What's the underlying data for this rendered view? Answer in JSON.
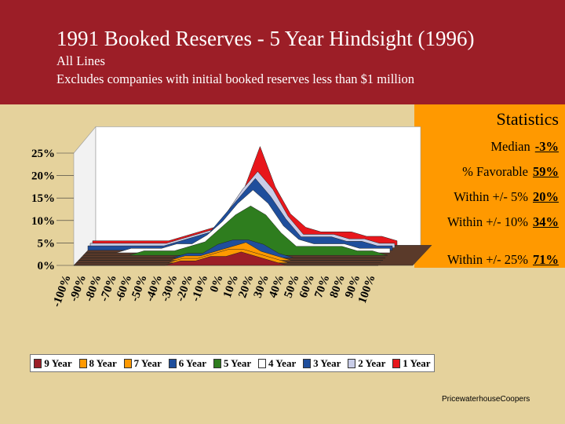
{
  "header": {
    "title": "1991 Booked Reserves - 5 Year Hindsight (1996)",
    "subtitle_1": "All Lines",
    "subtitle_2": "Excludes companies with initial booked reserves less than $1 million"
  },
  "statistics": {
    "title": "Statistics",
    "rows": [
      {
        "label": "Median",
        "value": "-3%"
      },
      {
        "label": "% Favorable",
        "value": "59%"
      },
      {
        "label": "Within +/- 5%",
        "value": "20%"
      },
      {
        "label": "Within +/- 10%",
        "value": "34%"
      },
      {
        "label": "Within +/- 25%",
        "value": "71%"
      }
    ]
  },
  "credit": "PricewaterhouseCoopers",
  "colors": {
    "header_bg": "#9c1e27",
    "page_bg": "#e5d29c",
    "stats_bg": "#ff9900"
  },
  "chart_data": {
    "type": "area",
    "title": "",
    "xlabel": "",
    "ylabel": "",
    "ylim": [
      0,
      0.25
    ],
    "y_ticks": [
      "0%",
      "5%",
      "10%",
      "15%",
      "20%",
      "25%"
    ],
    "categories": [
      "-100%",
      "-90%",
      "-80%",
      "-70%",
      "-60%",
      "-50%",
      "-40%",
      "-30%",
      "-20%",
      "-10%",
      "0%",
      "10%",
      "20%",
      "30%",
      "40%",
      "50%",
      "60%",
      "70%",
      "80%",
      "90%",
      "100%"
    ],
    "grid": false,
    "legend_position": "bottom",
    "series": [
      {
        "name": "9 Year",
        "color": "#9c1e27",
        "values": [
          0.0,
          0.0,
          0.0,
          0.0,
          0.0,
          0.0,
          0.0,
          0.01,
          0.01,
          0.02,
          0.02,
          0.03,
          0.02,
          0.01,
          0.0,
          0.0,
          0.0,
          0.0,
          0.0,
          0.0,
          0.0
        ]
      },
      {
        "name": "8 Year",
        "color": "#ff9900",
        "values": [
          0.0,
          0.0,
          0.0,
          0.0,
          0.0,
          0.0,
          0.0,
          0.01,
          0.01,
          0.02,
          0.03,
          0.03,
          0.02,
          0.01,
          0.0,
          0.0,
          0.0,
          0.0,
          0.0,
          0.0,
          0.0
        ]
      },
      {
        "name": "7 Year",
        "color": "#ff9900",
        "values": [
          0.0,
          0.0,
          0.0,
          0.0,
          0.0,
          0.0,
          0.0,
          0.01,
          0.01,
          0.02,
          0.03,
          0.04,
          0.02,
          0.01,
          0.0,
          0.0,
          0.0,
          0.0,
          0.0,
          0.0,
          0.0
        ]
      },
      {
        "name": "6 Year",
        "color": "#1f4e9c",
        "values": [
          0.0,
          0.0,
          0.0,
          0.0,
          0.0,
          0.0,
          0.0,
          0.01,
          0.01,
          0.03,
          0.04,
          0.04,
          0.03,
          0.01,
          0.0,
          0.0,
          0.0,
          0.0,
          0.0,
          0.0,
          0.0
        ]
      },
      {
        "name": "5 Year",
        "color": "#2e7d1e",
        "values": [
          0.0,
          0.0,
          0.0,
          0.0,
          0.01,
          0.01,
          0.01,
          0.02,
          0.03,
          0.06,
          0.09,
          0.11,
          0.09,
          0.05,
          0.02,
          0.02,
          0.02,
          0.02,
          0.01,
          0.01,
          0.0
        ]
      },
      {
        "name": "4 Year",
        "color": "#ffffff",
        "values": [
          0.0,
          0.0,
          0.0,
          0.01,
          0.01,
          0.01,
          0.02,
          0.02,
          0.04,
          0.07,
          0.11,
          0.14,
          0.11,
          0.06,
          0.03,
          0.02,
          0.02,
          0.02,
          0.01,
          0.01,
          0.01
        ]
      },
      {
        "name": "3 Year",
        "color": "#1f4e9c",
        "values": [
          0.01,
          0.01,
          0.01,
          0.01,
          0.01,
          0.01,
          0.02,
          0.03,
          0.04,
          0.08,
          0.12,
          0.16,
          0.12,
          0.07,
          0.03,
          0.03,
          0.03,
          0.02,
          0.02,
          0.01,
          0.01
        ]
      },
      {
        "name": "2 Year",
        "color": "#c9cde8",
        "values": [
          0.01,
          0.01,
          0.01,
          0.01,
          0.01,
          0.01,
          0.02,
          0.03,
          0.04,
          0.08,
          0.13,
          0.17,
          0.13,
          0.07,
          0.03,
          0.03,
          0.03,
          0.02,
          0.02,
          0.01,
          0.01
        ]
      },
      {
        "name": "1 Year",
        "color": "#e8171c",
        "values": [
          0.01,
          0.01,
          0.01,
          0.01,
          0.01,
          0.01,
          0.02,
          0.03,
          0.04,
          0.08,
          0.13,
          0.22,
          0.13,
          0.07,
          0.04,
          0.03,
          0.03,
          0.03,
          0.02,
          0.02,
          0.01
        ]
      }
    ]
  }
}
